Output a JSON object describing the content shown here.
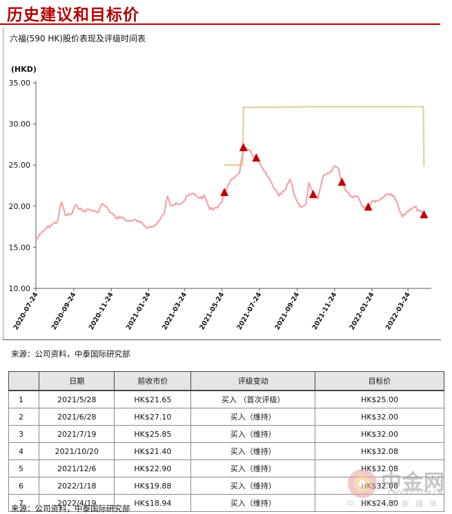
{
  "page_title": "历史建议和目标价",
  "source_label": "来源：公司资料，中泰国际研究部",
  "chart_data": {
    "type": "line",
    "title": "六福(590 HK)股价表现及评级时间表",
    "unit_label": "(HKD)",
    "ylim": [
      10.0,
      35.0
    ],
    "y_ticks": [
      "35.00",
      "30.00",
      "25.00",
      "20.00",
      "15.00",
      "10.00"
    ],
    "x_ticks": [
      "2020-07-24",
      "2020-09-24",
      "2020-11-24",
      "2021-01-24",
      "2021-03-24",
      "2021-05-24",
      "2021-07-24",
      "2021-09-24",
      "2021-11-24",
      "2022-01-24",
      "2022-03-24"
    ],
    "colors": {
      "price": "#f4a3a6",
      "target": "#e8d3a8",
      "marker": "#c00000"
    },
    "series": [
      {
        "values": [
          [
            "2020-07-24",
            15.9
          ],
          [
            "2020-08-01",
            16.6
          ],
          [
            "2020-08-10",
            17.3
          ],
          [
            "2020-08-20",
            17.8
          ],
          [
            "2020-08-28",
            18.1
          ],
          [
            "2020-09-04",
            20.5
          ],
          [
            "2020-09-10",
            18.9
          ],
          [
            "2020-09-20",
            19.0
          ],
          [
            "2020-09-28",
            20.2
          ],
          [
            "2020-10-08",
            19.4
          ],
          [
            "2020-10-20",
            19.6
          ],
          [
            "2020-11-01",
            19.2
          ],
          [
            "2020-11-10",
            20.3
          ],
          [
            "2020-11-20",
            19.5
          ],
          [
            "2020-12-01",
            18.6
          ],
          [
            "2020-12-10",
            18.7
          ],
          [
            "2020-12-20",
            18.2
          ],
          [
            "2020-12-30",
            18.3
          ],
          [
            "2021-01-10",
            18.0
          ],
          [
            "2021-01-24",
            17.4
          ],
          [
            "2021-02-01",
            17.5
          ],
          [
            "2021-02-10",
            18.2
          ],
          [
            "2021-02-18",
            19.0
          ],
          [
            "2021-02-24",
            21.2
          ],
          [
            "2021-03-01",
            20.1
          ],
          [
            "2021-03-10",
            20.4
          ],
          [
            "2021-03-20",
            20.4
          ],
          [
            "2021-03-30",
            21.3
          ],
          [
            "2021-04-08",
            21.5
          ],
          [
            "2021-04-18",
            21.0
          ],
          [
            "2021-04-26",
            21.2
          ],
          [
            "2021-05-04",
            19.6
          ],
          [
            "2021-05-14",
            19.8
          ],
          [
            "2021-05-24",
            20.5
          ],
          [
            "2021-05-28",
            21.65
          ],
          [
            "2021-06-05",
            22.8
          ],
          [
            "2021-06-14",
            23.6
          ],
          [
            "2021-06-22",
            24.2
          ],
          [
            "2021-06-28",
            27.1
          ],
          [
            "2021-07-05",
            26.8
          ],
          [
            "2021-07-19",
            25.85
          ],
          [
            "2021-07-28",
            24.7
          ],
          [
            "2021-08-05",
            23.8
          ],
          [
            "2021-08-15",
            22.5
          ],
          [
            "2021-08-25",
            21.2
          ],
          [
            "2021-09-05",
            22.0
          ],
          [
            "2021-09-12",
            23.3
          ],
          [
            "2021-09-20",
            21.2
          ],
          [
            "2021-09-28",
            20.0
          ],
          [
            "2021-10-08",
            20.2
          ],
          [
            "2021-10-13",
            22.8
          ],
          [
            "2021-10-20",
            21.4
          ],
          [
            "2021-10-28",
            20.9
          ],
          [
            "2021-11-06",
            23.8
          ],
          [
            "2021-11-15",
            24.0
          ],
          [
            "2021-11-24",
            24.9
          ],
          [
            "2021-12-01",
            24.4
          ],
          [
            "2021-12-06",
            22.9
          ],
          [
            "2021-12-14",
            21.8
          ],
          [
            "2021-12-22",
            21.2
          ],
          [
            "2022-01-01",
            21.2
          ],
          [
            "2022-01-10",
            19.9
          ],
          [
            "2022-01-18",
            19.88
          ],
          [
            "2022-01-27",
            20.7
          ],
          [
            "2022-02-05",
            20.7
          ],
          [
            "2022-02-15",
            21.4
          ],
          [
            "2022-02-25",
            21.5
          ],
          [
            "2022-03-05",
            20.6
          ],
          [
            "2022-03-15",
            18.7
          ],
          [
            "2022-03-25",
            19.4
          ],
          [
            "2022-04-04",
            19.9
          ],
          [
            "2022-04-12",
            19.4
          ],
          [
            "2022-04-19",
            18.94
          ]
        ]
      },
      {
        "values": [
          [
            "2021-05-28",
            25.0
          ],
          [
            "2021-06-27",
            25.0
          ],
          [
            "2021-06-28",
            32.0
          ],
          [
            "2021-10-20",
            32.08
          ],
          [
            "2022-04-18",
            32.08
          ],
          [
            "2022-04-19",
            24.8
          ]
        ]
      }
    ],
    "markers": [
      [
        "2021-05-28",
        21.65
      ],
      [
        "2021-06-28",
        27.1
      ],
      [
        "2021-07-19",
        25.85
      ],
      [
        "2021-10-20",
        21.4
      ],
      [
        "2021-12-06",
        22.9
      ],
      [
        "2022-01-18",
        19.88
      ],
      [
        "2022-04-19",
        18.94
      ]
    ]
  },
  "table": {
    "headers": [
      "",
      "日期",
      "前收市价",
      "评级变动",
      "目标价"
    ],
    "rows": [
      [
        "1",
        "2021/5/28",
        "HK$21.65",
        "买入 （首次评级）",
        "HK$25.00"
      ],
      [
        "2",
        "2021/6/28",
        "HK$27.10",
        "买入（维持）",
        "HK$32.00"
      ],
      [
        "3",
        "2021/7/19",
        "HK$25.85",
        "买入（维持）",
        "HK$32.00"
      ],
      [
        "4",
        "2021/10/20",
        "HK$21.40",
        "买入（维持）",
        "HK$32.08"
      ],
      [
        "5",
        "2021/12/6",
        "HK$22.90",
        "买入（维持）",
        "HK$32.08"
      ],
      [
        "6",
        "2022/1/18",
        "HK$19.88",
        "买入（维持）",
        "HK$32.08"
      ],
      [
        "7",
        "2022/4/19",
        "HK$18.94",
        "买入（维持）",
        "HK$24.80"
      ]
    ]
  },
  "watermark": {
    "text": "中金网",
    "url": "CNGOLD.COM.CN",
    "sub": "中文财经新媒体"
  }
}
